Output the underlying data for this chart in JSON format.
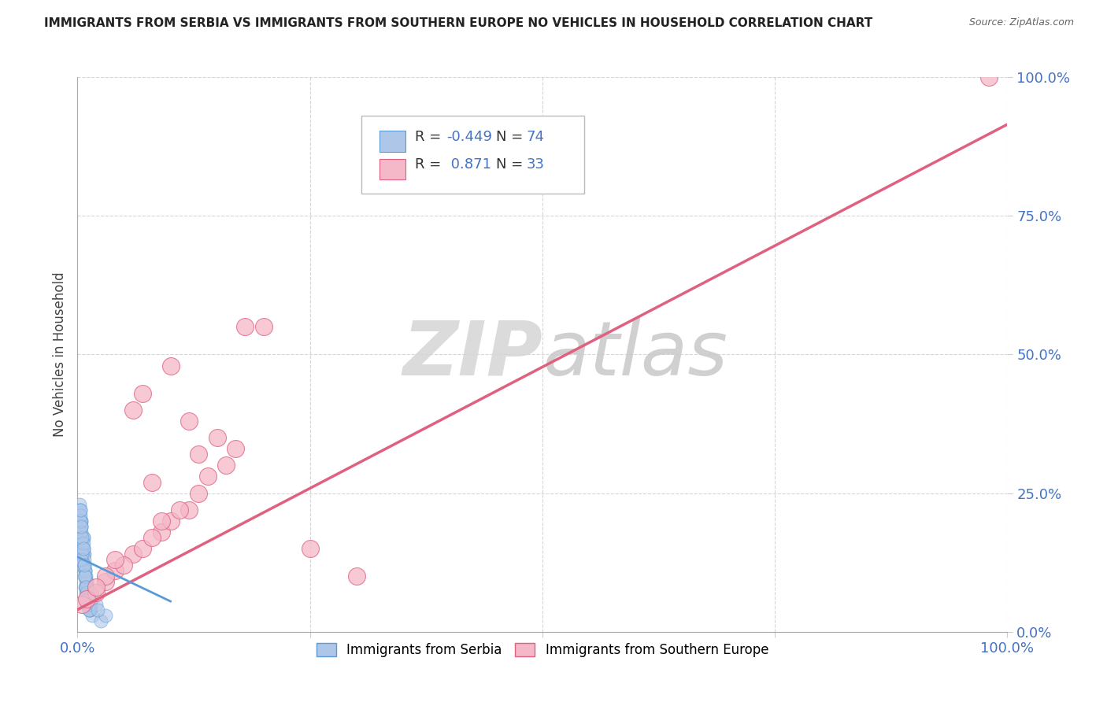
{
  "title": "IMMIGRANTS FROM SERBIA VS IMMIGRANTS FROM SOUTHERN EUROPE NO VEHICLES IN HOUSEHOLD CORRELATION CHART",
  "source": "Source: ZipAtlas.com",
  "ylabel": "No Vehicles in Household",
  "xlim": [
    0,
    1.0
  ],
  "ylim": [
    0,
    1.0
  ],
  "ytick_labels": [
    "0.0%",
    "25.0%",
    "50.0%",
    "75.0%",
    "100.0%"
  ],
  "ytick_values": [
    0,
    0.25,
    0.5,
    0.75,
    1.0
  ],
  "xtick_values": [
    0,
    0.25,
    0.5,
    0.75,
    1.0
  ],
  "serbia_R": -0.449,
  "serbia_N": 74,
  "southern_R": 0.871,
  "southern_N": 33,
  "serbia_color": "#aec6e8",
  "serbia_edge_color": "#5b9bd5",
  "southern_color": "#f4b8c8",
  "southern_edge_color": "#e06080",
  "southern_line_color": "#e06080",
  "serbia_line_color": "#5b9bd5",
  "watermark_color": "#d8d8d8",
  "legend_text_color": "#333333",
  "value_color": "#4472c4",
  "title_color": "#222222",
  "axis_label_color": "#444444",
  "tick_color": "#4472c4",
  "serbia_x": [
    0.005,
    0.008,
    0.012,
    0.003,
    0.006,
    0.015,
    0.009,
    0.004,
    0.011,
    0.007,
    0.002,
    0.01,
    0.014,
    0.006,
    0.003,
    0.008,
    0.013,
    0.005,
    0.009,
    0.016,
    0.004,
    0.011,
    0.007,
    0.002,
    0.015,
    0.006,
    0.01,
    0.003,
    0.008,
    0.013,
    0.005,
    0.009,
    0.004,
    0.012,
    0.007,
    0.002,
    0.011,
    0.006,
    0.014,
    0.003,
    0.008,
    0.005,
    0.01,
    0.004,
    0.007,
    0.012,
    0.003,
    0.006,
    0.009,
    0.015,
    0.004,
    0.008,
    0.011,
    0.005,
    0.007,
    0.013,
    0.003,
    0.009,
    0.006,
    0.012,
    0.004,
    0.008,
    0.005,
    0.01,
    0.003,
    0.007,
    0.011,
    0.006,
    0.004,
    0.009,
    0.02,
    0.025,
    0.03,
    0.022
  ],
  "serbia_y": [
    0.12,
    0.08,
    0.05,
    0.18,
    0.15,
    0.07,
    0.1,
    0.2,
    0.06,
    0.14,
    0.22,
    0.09,
    0.04,
    0.17,
    0.13,
    0.11,
    0.06,
    0.16,
    0.08,
    0.03,
    0.19,
    0.05,
    0.12,
    0.21,
    0.07,
    0.14,
    0.09,
    0.18,
    0.11,
    0.04,
    0.15,
    0.07,
    0.2,
    0.06,
    0.13,
    0.23,
    0.08,
    0.17,
    0.05,
    0.22,
    0.1,
    0.16,
    0.07,
    0.19,
    0.12,
    0.04,
    0.21,
    0.15,
    0.09,
    0.06,
    0.18,
    0.11,
    0.07,
    0.14,
    0.1,
    0.05,
    0.2,
    0.08,
    0.16,
    0.04,
    0.13,
    0.1,
    0.17,
    0.07,
    0.22,
    0.12,
    0.06,
    0.15,
    0.19,
    0.08,
    0.05,
    0.02,
    0.03,
    0.04
  ],
  "southern_x": [
    0.005,
    0.03,
    0.06,
    0.09,
    0.12,
    0.04,
    0.07,
    0.1,
    0.13,
    0.16,
    0.02,
    0.05,
    0.08,
    0.11,
    0.14,
    0.17,
    0.03,
    0.06,
    0.09,
    0.12,
    0.01,
    0.07,
    0.1,
    0.15,
    0.2,
    0.04,
    0.08,
    0.13,
    0.18,
    0.02,
    0.25,
    0.3,
    0.98
  ],
  "southern_y": [
    0.05,
    0.09,
    0.14,
    0.18,
    0.22,
    0.11,
    0.15,
    0.2,
    0.25,
    0.3,
    0.07,
    0.12,
    0.17,
    0.22,
    0.28,
    0.33,
    0.1,
    0.4,
    0.2,
    0.38,
    0.06,
    0.43,
    0.48,
    0.35,
    0.55,
    0.13,
    0.27,
    0.32,
    0.55,
    0.08,
    0.15,
    0.1,
    1.0
  ],
  "southern_line_x0": 0.0,
  "southern_line_y0": 0.04,
  "southern_line_x1": 1.0,
  "southern_line_y1": 0.915,
  "serbia_line_x0": 0.0,
  "serbia_line_y0": 0.135,
  "serbia_line_x1": 0.1,
  "serbia_line_y1": 0.055
}
